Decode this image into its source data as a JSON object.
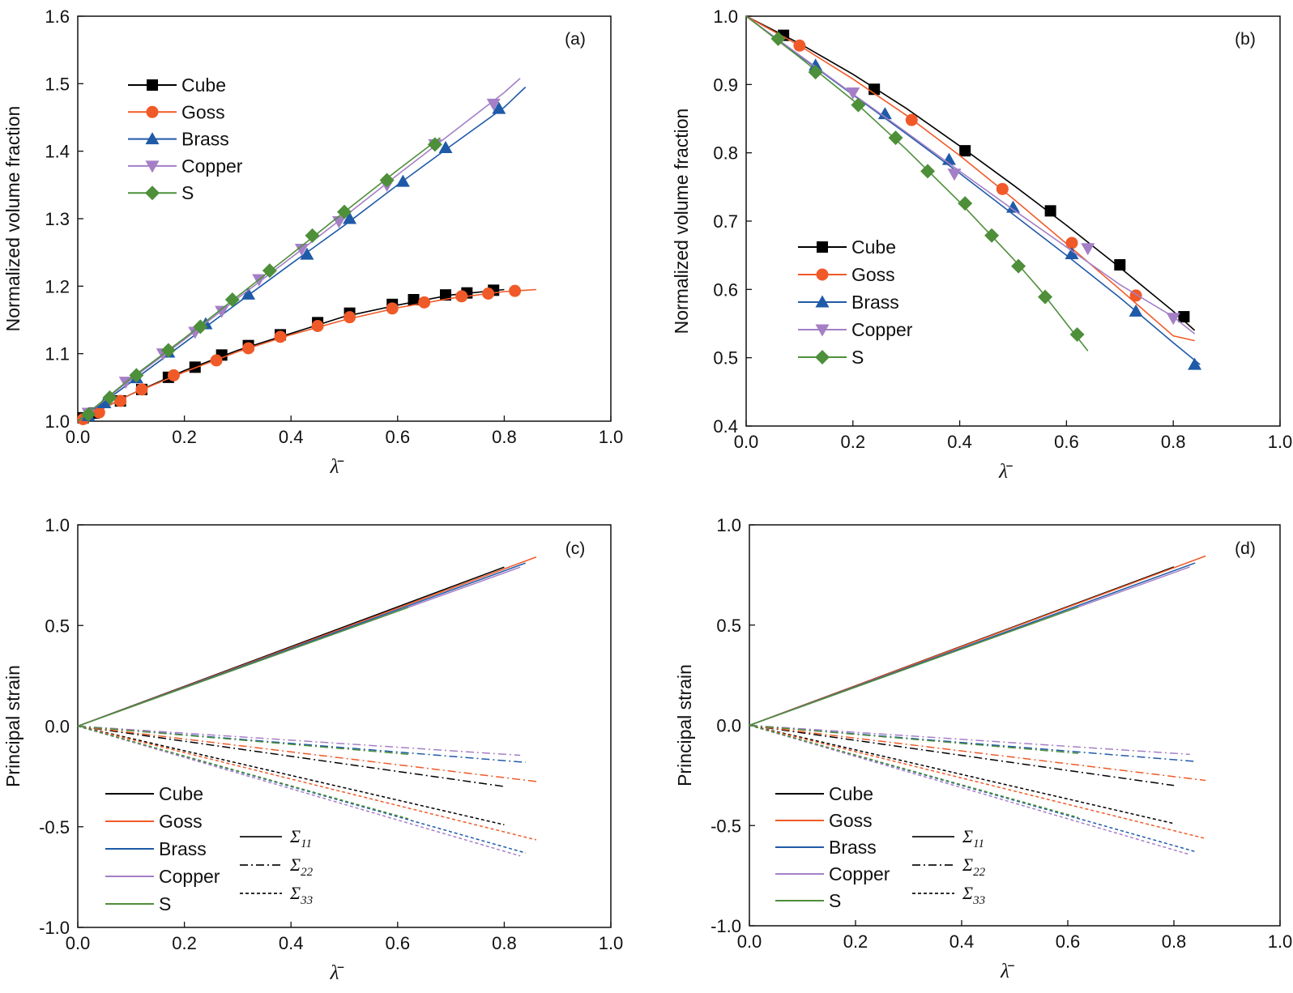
{
  "colors": {
    "Cube": "#000000",
    "Goss": "#f05a28",
    "Brass": "#1f5aa8",
    "Copper": "#a57fc6",
    "S": "#4e8f3a"
  },
  "markers": {
    "Cube": "square",
    "Goss": "circle",
    "Brass": "triangle-up",
    "Copper": "triangle-down",
    "S": "diamond"
  },
  "chart_data": [
    {
      "type": "line",
      "panel": "(a)",
      "title": "",
      "xlabel": "λ̄",
      "ylabel": "Normalized volume fraction",
      "xlim": [
        0.0,
        1.0
      ],
      "ylim": [
        1.0,
        1.6
      ],
      "xticks": [
        "0.0",
        "0.2",
        "0.4",
        "0.6",
        "0.8",
        "1.0"
      ],
      "yticks": [
        "1.0",
        "1.1",
        "1.2",
        "1.3",
        "1.4",
        "1.5",
        "1.6"
      ],
      "legend": "upper-left",
      "series": [
        {
          "name": "Cube",
          "curve": [
            [
              0,
              1.0
            ],
            [
              0.1,
              1.04
            ],
            [
              0.2,
              1.075
            ],
            [
              0.3,
              1.105
            ],
            [
              0.4,
              1.13
            ],
            [
              0.5,
              1.155
            ],
            [
              0.6,
              1.172
            ],
            [
              0.7,
              1.187
            ],
            [
              0.8,
              1.195
            ]
          ],
          "markers": [
            [
              0.01,
              1.005
            ],
            [
              0.03,
              1.012
            ],
            [
              0.08,
              1.03
            ],
            [
              0.12,
              1.047
            ],
            [
              0.17,
              1.065
            ],
            [
              0.22,
              1.08
            ],
            [
              0.27,
              1.098
            ],
            [
              0.32,
              1.112
            ],
            [
              0.38,
              1.128
            ],
            [
              0.45,
              1.146
            ],
            [
              0.51,
              1.16
            ],
            [
              0.59,
              1.173
            ],
            [
              0.63,
              1.18
            ],
            [
              0.69,
              1.187
            ],
            [
              0.73,
              1.19
            ],
            [
              0.78,
              1.194
            ]
          ]
        },
        {
          "name": "Goss",
          "curve": [
            [
              0,
              1.0
            ],
            [
              0.1,
              1.04
            ],
            [
              0.2,
              1.073
            ],
            [
              0.3,
              1.103
            ],
            [
              0.4,
              1.128
            ],
            [
              0.5,
              1.15
            ],
            [
              0.6,
              1.168
            ],
            [
              0.7,
              1.182
            ],
            [
              0.8,
              1.192
            ],
            [
              0.86,
              1.195
            ]
          ],
          "markers": [
            [
              0.01,
              1.003
            ],
            [
              0.04,
              1.013
            ],
            [
              0.08,
              1.03
            ],
            [
              0.12,
              1.047
            ],
            [
              0.18,
              1.068
            ],
            [
              0.26,
              1.09
            ],
            [
              0.32,
              1.108
            ],
            [
              0.38,
              1.125
            ],
            [
              0.45,
              1.141
            ],
            [
              0.51,
              1.154
            ],
            [
              0.59,
              1.167
            ],
            [
              0.65,
              1.176
            ],
            [
              0.72,
              1.185
            ],
            [
              0.77,
              1.189
            ],
            [
              0.82,
              1.193
            ]
          ]
        },
        {
          "name": "Brass",
          "curve": [
            [
              0,
              1.0
            ],
            [
              0.1,
              1.058
            ],
            [
              0.2,
              1.116
            ],
            [
              0.3,
              1.175
            ],
            [
              0.4,
              1.233
            ],
            [
              0.5,
              1.29
            ],
            [
              0.6,
              1.35
            ],
            [
              0.7,
              1.408
            ],
            [
              0.8,
              1.465
            ],
            [
              0.84,
              1.495
            ]
          ],
          "markers": [
            [
              0.02,
              1.008
            ],
            [
              0.05,
              1.027
            ],
            [
              0.11,
              1.064
            ],
            [
              0.17,
              1.102
            ],
            [
              0.24,
              1.144
            ],
            [
              0.32,
              1.188
            ],
            [
              0.43,
              1.247
            ],
            [
              0.51,
              1.3
            ],
            [
              0.61,
              1.355
            ],
            [
              0.69,
              1.405
            ],
            [
              0.79,
              1.463
            ]
          ]
        },
        {
          "name": "Copper",
          "curve": [
            [
              0,
              1.0
            ],
            [
              0.1,
              1.062
            ],
            [
              0.2,
              1.121
            ],
            [
              0.3,
              1.182
            ],
            [
              0.4,
              1.242
            ],
            [
              0.5,
              1.303
            ],
            [
              0.6,
              1.365
            ],
            [
              0.7,
              1.426
            ],
            [
              0.8,
              1.487
            ],
            [
              0.83,
              1.508
            ]
          ],
          "markers": [
            [
              0.02,
              1.012
            ],
            [
              0.09,
              1.058
            ],
            [
              0.16,
              1.1
            ],
            [
              0.22,
              1.132
            ],
            [
              0.27,
              1.163
            ],
            [
              0.34,
              1.21
            ],
            [
              0.42,
              1.255
            ],
            [
              0.49,
              1.296
            ],
            [
              0.58,
              1.35
            ],
            [
              0.67,
              1.41
            ],
            [
              0.78,
              1.47
            ]
          ]
        },
        {
          "name": "S",
          "curve": [
            [
              0,
              1.0
            ],
            [
              0.1,
              1.064
            ],
            [
              0.2,
              1.123
            ],
            [
              0.3,
              1.185
            ],
            [
              0.4,
              1.247
            ],
            [
              0.5,
              1.31
            ],
            [
              0.6,
              1.372
            ],
            [
              0.68,
              1.42
            ]
          ],
          "markers": [
            [
              0.02,
              1.01
            ],
            [
              0.06,
              1.035
            ],
            [
              0.11,
              1.068
            ],
            [
              0.17,
              1.105
            ],
            [
              0.23,
              1.14
            ],
            [
              0.29,
              1.18
            ],
            [
              0.36,
              1.223
            ],
            [
              0.44,
              1.275
            ],
            [
              0.5,
              1.31
            ],
            [
              0.58,
              1.357
            ],
            [
              0.67,
              1.41
            ]
          ]
        }
      ]
    },
    {
      "type": "line",
      "panel": "(b)",
      "title": "",
      "xlabel": "λ̄",
      "ylabel": "Normalized volume fraction",
      "xlim": [
        0.0,
        1.0
      ],
      "ylim": [
        0.4,
        1.0
      ],
      "xticks": [
        "0.0",
        "0.2",
        "0.4",
        "0.6",
        "0.8",
        "1.0"
      ],
      "yticks": [
        "0.4",
        "0.5",
        "0.6",
        "0.7",
        "0.8",
        "0.9",
        "1.0"
      ],
      "legend": "lower-left",
      "series": [
        {
          "name": "Cube",
          "curve": [
            [
              0,
              1.0
            ],
            [
              0.1,
              0.96
            ],
            [
              0.2,
              0.915
            ],
            [
              0.3,
              0.865
            ],
            [
              0.4,
              0.81
            ],
            [
              0.5,
              0.753
            ],
            [
              0.6,
              0.694
            ],
            [
              0.7,
              0.632
            ],
            [
              0.8,
              0.568
            ],
            [
              0.84,
              0.54
            ]
          ],
          "markers": [
            [
              0.07,
              0.972
            ],
            [
              0.24,
              0.893
            ],
            [
              0.41,
              0.803
            ],
            [
              0.57,
              0.715
            ],
            [
              0.7,
              0.636
            ],
            [
              0.82,
              0.56
            ]
          ]
        },
        {
          "name": "Goss",
          "curve": [
            [
              0,
              1.0
            ],
            [
              0.1,
              0.957
            ],
            [
              0.2,
              0.908
            ],
            [
              0.3,
              0.855
            ],
            [
              0.4,
              0.796
            ],
            [
              0.5,
              0.733
            ],
            [
              0.6,
              0.667
            ],
            [
              0.7,
              0.6
            ],
            [
              0.8,
              0.532
            ],
            [
              0.84,
              0.525
            ]
          ],
          "markers": [
            [
              0.1,
              0.957
            ],
            [
              0.31,
              0.848
            ],
            [
              0.48,
              0.747
            ],
            [
              0.61,
              0.668
            ],
            [
              0.73,
              0.591
            ]
          ]
        },
        {
          "name": "Brass",
          "curve": [
            [
              0,
              1.0
            ],
            [
              0.1,
              0.942
            ],
            [
              0.2,
              0.885
            ],
            [
              0.3,
              0.828
            ],
            [
              0.4,
              0.77
            ],
            [
              0.5,
              0.71
            ],
            [
              0.6,
              0.65
            ],
            [
              0.7,
              0.588
            ],
            [
              0.8,
              0.522
            ],
            [
              0.85,
              0.49
            ]
          ],
          "markers": [
            [
              0.13,
              0.928
            ],
            [
              0.26,
              0.857
            ],
            [
              0.38,
              0.79
            ],
            [
              0.5,
              0.72
            ],
            [
              0.61,
              0.652
            ],
            [
              0.73,
              0.568
            ],
            [
              0.84,
              0.49
            ]
          ]
        },
        {
          "name": "Copper",
          "curve": [
            [
              0,
              1.0
            ],
            [
              0.1,
              0.943
            ],
            [
              0.2,
              0.886
            ],
            [
              0.3,
              0.83
            ],
            [
              0.4,
              0.773
            ],
            [
              0.5,
              0.717
            ],
            [
              0.6,
              0.662
            ],
            [
              0.7,
              0.607
            ],
            [
              0.8,
              0.56
            ],
            [
              0.84,
              0.535
            ]
          ],
          "markers": [
            [
              0.2,
              0.888
            ],
            [
              0.39,
              0.769
            ],
            [
              0.64,
              0.66
            ],
            [
              0.8,
              0.558
            ]
          ]
        },
        {
          "name": "S",
          "curve": [
            [
              0,
              1.0
            ],
            [
              0.1,
              0.94
            ],
            [
              0.2,
              0.877
            ],
            [
              0.3,
              0.805
            ],
            [
              0.4,
              0.728
            ],
            [
              0.5,
              0.645
            ],
            [
              0.55,
              0.6
            ],
            [
              0.6,
              0.55
            ],
            [
              0.64,
              0.51
            ]
          ],
          "markers": [
            [
              0.06,
              0.967
            ],
            [
              0.13,
              0.918
            ],
            [
              0.21,
              0.87
            ],
            [
              0.28,
              0.822
            ],
            [
              0.34,
              0.773
            ],
            [
              0.41,
              0.726
            ],
            [
              0.46,
              0.679
            ],
            [
              0.51,
              0.634
            ],
            [
              0.56,
              0.589
            ],
            [
              0.62,
              0.534
            ]
          ]
        }
      ]
    },
    {
      "type": "line",
      "panel": "(c)",
      "title": "",
      "xlabel": "λ̄",
      "ylabel": "Principal strain",
      "xlim": [
        0.0,
        1.0
      ],
      "ylim": [
        -1.0,
        1.0
      ],
      "xticks": [
        "0.0",
        "0.2",
        "0.4",
        "0.6",
        "0.8",
        "1.0"
      ],
      "yticks": [
        "-1.0",
        "-0.5",
        "0.0",
        "0.5",
        "1.0"
      ],
      "legend": "lower-left",
      "component_legend": [
        {
          "sym": "Σ",
          "sub": "11",
          "style": "solid"
        },
        {
          "sym": "Σ",
          "sub": "22",
          "style": "dashdot"
        },
        {
          "sym": "Σ",
          "sub": "33",
          "style": "dotted"
        }
      ],
      "series": [
        {
          "name": "Cube",
          "xend": 0.8,
          "s11": 0.79,
          "s22": -0.3,
          "s33": -0.49
        },
        {
          "name": "Goss",
          "xend": 0.86,
          "s11": 0.84,
          "s22": -0.275,
          "s33": -0.565
        },
        {
          "name": "Brass",
          "xend": 0.84,
          "s11": 0.81,
          "s22": -0.18,
          "s33": -0.63
        },
        {
          "name": "Copper",
          "xend": 0.83,
          "s11": 0.79,
          "s22": -0.145,
          "s33": -0.645
        },
        {
          "name": "S",
          "xend": 0.62,
          "s11": 0.59,
          "s22": -0.14,
          "s33": -0.46
        }
      ]
    },
    {
      "type": "line",
      "panel": "(d)",
      "title": "",
      "xlabel": "λ̄",
      "ylabel": "Principal strain",
      "xlim": [
        0.0,
        1.0
      ],
      "ylim": [
        -1.0,
        1.0
      ],
      "xticks": [
        "0.0",
        "0.2",
        "0.4",
        "0.6",
        "0.8",
        "1.0"
      ],
      "yticks": [
        "-1.0",
        "-0.5",
        "0.0",
        "0.5",
        "1.0"
      ],
      "legend": "lower-left",
      "component_legend": [
        {
          "sym": "Σ",
          "sub": "11",
          "style": "solid"
        },
        {
          "sym": "Σ",
          "sub": "22",
          "style": "dashdot"
        },
        {
          "sym": "Σ",
          "sub": "33",
          "style": "dotted"
        }
      ],
      "series": [
        {
          "name": "Cube",
          "xend": 0.8,
          "s11": 0.79,
          "s22": -0.3,
          "s33": -0.49
        },
        {
          "name": "Goss",
          "xend": 0.86,
          "s11": 0.845,
          "s22": -0.275,
          "s33": -0.565
        },
        {
          "name": "Brass",
          "xend": 0.84,
          "s11": 0.81,
          "s22": -0.18,
          "s33": -0.63
        },
        {
          "name": "Copper",
          "xend": 0.83,
          "s11": 0.79,
          "s22": -0.145,
          "s33": -0.645
        },
        {
          "name": "S",
          "xend": 0.62,
          "s11": 0.59,
          "s22": -0.14,
          "s33": -0.46
        }
      ]
    }
  ]
}
